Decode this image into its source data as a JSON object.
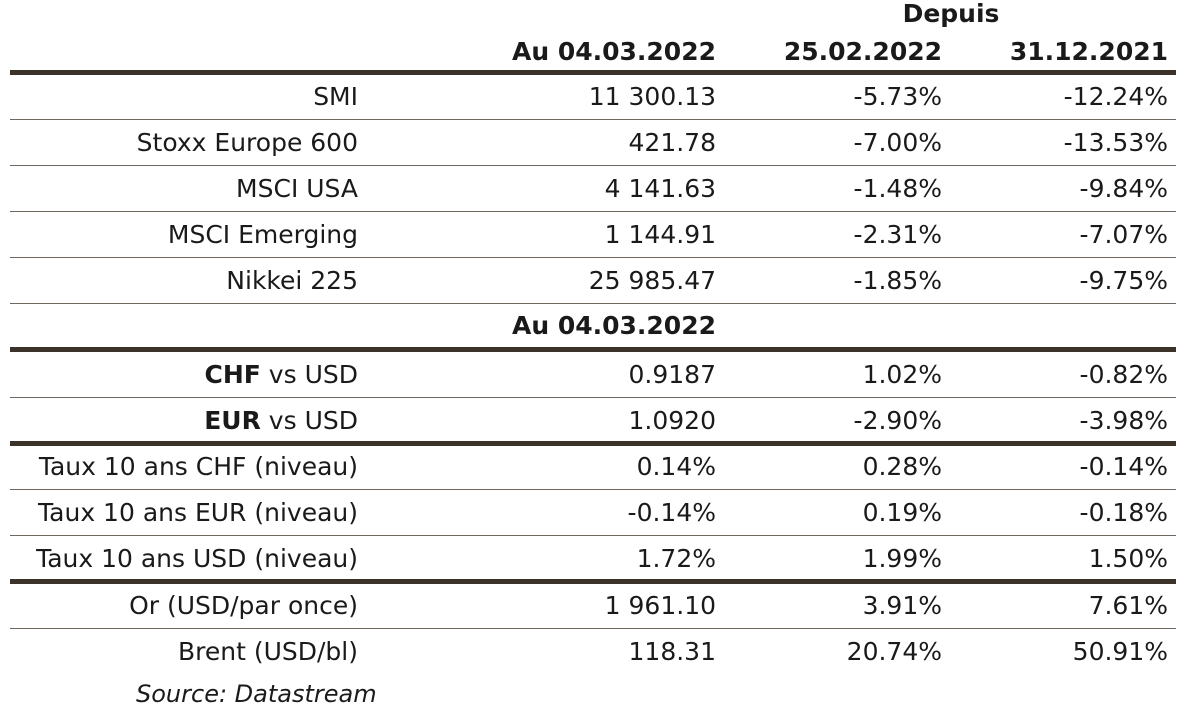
{
  "header": {
    "depuis": "Depuis",
    "col1": "Au 04.03.2022",
    "col2": "25.02.2022",
    "col3": "31.12.2021"
  },
  "indices": [
    {
      "name": "SMI",
      "value": "11 300.13",
      "since_week": "-5.73%",
      "since_year": "-12.24%"
    },
    {
      "name": "Stoxx Europe 600",
      "value": "421.78",
      "since_week": "-7.00%",
      "since_year": "-13.53%"
    },
    {
      "name": "MSCI USA",
      "value": "4 141.63",
      "since_week": "-1.48%",
      "since_year": "-9.84%"
    },
    {
      "name": "MSCI Emerging",
      "value": "1 144.91",
      "since_week": "-2.31%",
      "since_year": "-7.07%"
    },
    {
      "name": "Nikkei 225",
      "value": "25 985.47",
      "since_week": "-1.85%",
      "since_year": "-9.75%"
    }
  ],
  "subheader": {
    "col1": "Au 04.03.2022"
  },
  "currencies": [
    {
      "code": "CHF",
      "rest": " vs USD",
      "value": "0.9187",
      "since_week": "1.02%",
      "since_year": "-0.82%"
    },
    {
      "code": "EUR",
      "rest": " vs USD",
      "value": "1.0920",
      "since_week": "-2.90%",
      "since_year": "-3.98%"
    }
  ],
  "rates": [
    {
      "name": "Taux 10 ans CHF (niveau)",
      "value": "0.14%",
      "since_week": "0.28%",
      "since_year": "-0.14%"
    },
    {
      "name": "Taux 10 ans EUR (niveau)",
      "value": "-0.14%",
      "since_week": "0.19%",
      "since_year": "-0.18%"
    },
    {
      "name": "Taux 10 ans USD (niveau)",
      "value": "1.72%",
      "since_week": "1.99%",
      "since_year": "1.50%"
    }
  ],
  "commodities": [
    {
      "name": "Or (USD/par once)",
      "value": "1 961.10",
      "since_week": "3.91%",
      "since_year": "7.61%"
    },
    {
      "name": "Brent (USD/bl)",
      "value": "118.31",
      "since_week": "20.74%",
      "since_year": "50.91%"
    }
  ],
  "source": "Source: Datastream"
}
